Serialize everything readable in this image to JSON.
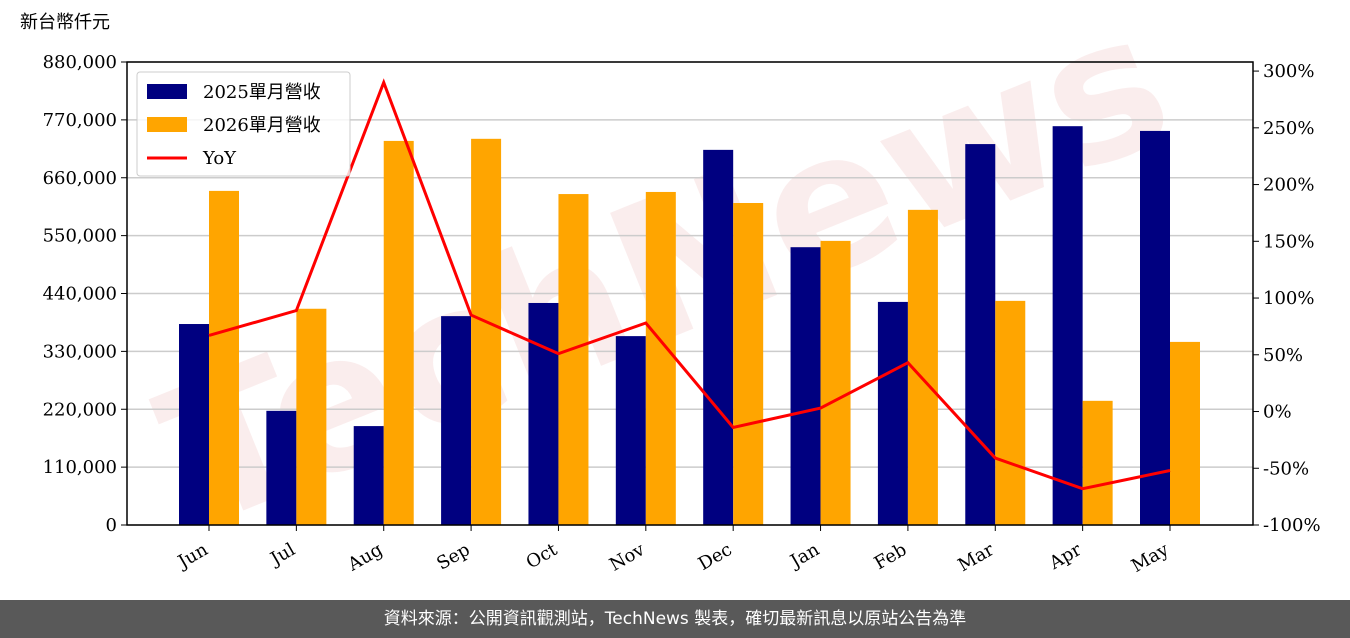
{
  "chart_data": {
    "type": "bar",
    "y_label": "新台幣仟元",
    "categories": [
      "Jun",
      "Jul",
      "Aug",
      "Sep",
      "Oct",
      "Nov",
      "Dec",
      "Jan",
      "Feb",
      "Mar",
      "Apr",
      "May"
    ],
    "series": [
      {
        "name": "2025單月營收",
        "color": "#000080",
        "type": "bar",
        "values": [
          382000,
          217000,
          188000,
          397000,
          422000,
          359000,
          713000,
          528000,
          424000,
          724000,
          758000,
          749000
        ]
      },
      {
        "name": "2026單月營收",
        "color": "#ffa500",
        "type": "bar",
        "values": [
          635000,
          411000,
          730000,
          734000,
          629000,
          633000,
          612000,
          540000,
          599000,
          426000,
          236000,
          348000
        ]
      },
      {
        "name": "YoY",
        "color": "#ff0000",
        "type": "line",
        "axis": "y2",
        "values": [
          67,
          89,
          290,
          85,
          51,
          78,
          -14,
          3,
          43,
          -41,
          -68,
          -52
        ]
      }
    ],
    "ylim": [
      0,
      880000
    ],
    "yticks": [
      0,
      {
        "value": 110000,
        "label": "110,000"
      },
      {
        "value": 220000,
        "label": "220,000"
      },
      {
        "value": 330000,
        "label": "330,000"
      },
      {
        "value": 440000,
        "label": "440,000"
      },
      {
        "value": 550000,
        "label": "550,000"
      },
      {
        "value": 660000,
        "label": "660,000"
      },
      {
        "value": 770000,
        "label": "770,000"
      },
      {
        "value": 880000,
        "label": "880,000"
      }
    ],
    "y2lim": [
      -100,
      308
    ],
    "y2ticks": [
      {
        "value": -100,
        "label": "-100%"
      },
      {
        "value": -50,
        "label": "-50%"
      },
      {
        "value": 0,
        "label": "0%"
      },
      {
        "value": 50,
        "label": "50%"
      },
      {
        "value": 100,
        "label": "100%"
      },
      {
        "value": 150,
        "label": "150%"
      },
      {
        "value": 200,
        "label": "200%"
      },
      {
        "value": 250,
        "label": "250%"
      },
      {
        "value": 300,
        "label": "300%"
      }
    ],
    "grid": true,
    "legend": "upper-left"
  },
  "watermark": "TechNews",
  "footer": "資料來源：公開資訊觀測站，TechNews 製表，確切最新訊息以原站公告為準"
}
